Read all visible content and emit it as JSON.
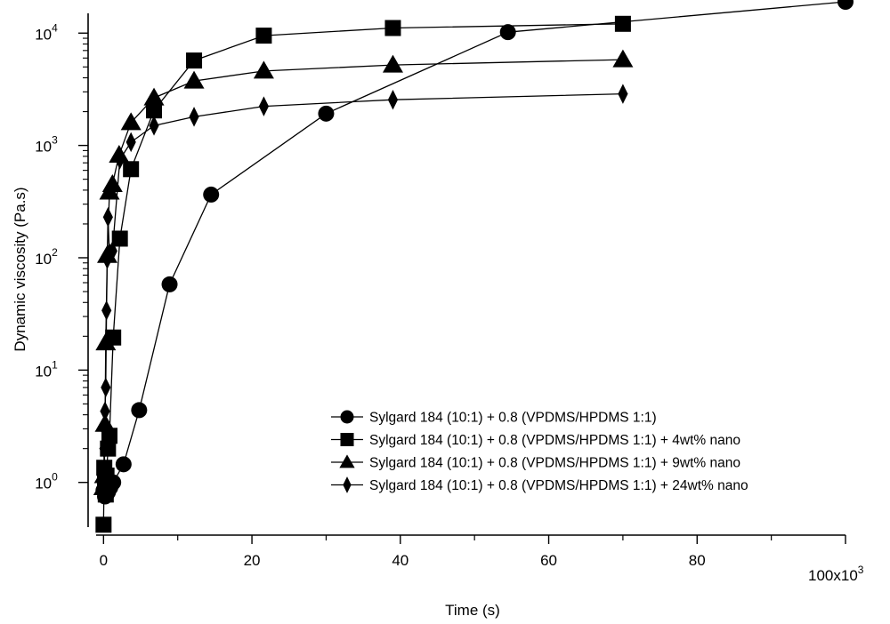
{
  "chart_data": {
    "type": "scatter",
    "xlabel": "Time (s)",
    "ylabel": "Dynamic viscosity (Pa.s)",
    "x_multiplier_base": "100x10",
    "x_multiplier_exp": "3",
    "xlim": [
      -1000,
      100000
    ],
    "ylim": [
      0.4,
      15000
    ],
    "yscale": "log",
    "x_ticks": [
      0,
      20000,
      40000,
      60000,
      80000,
      100000
    ],
    "x_tick_labels": [
      "0",
      "20",
      "40",
      "60",
      "80",
      ""
    ],
    "y_ticks": [
      1,
      10,
      100,
      1000,
      10000
    ],
    "y_tick_base": "10",
    "y_tick_exps": [
      "0",
      "1",
      "2",
      "3",
      "4"
    ],
    "legend_position": "bottom-right",
    "series": [
      {
        "name": "Sylgard 184 (10:1) + 0.8 (VPDMS/HPDMS 1:1)",
        "marker": "circle",
        "x": [
          0,
          200,
          400,
          600,
          900,
          1300,
          2700,
          4800,
          8900,
          14500,
          30000,
          54500,
          100000
        ],
        "y": [
          0.85,
          0.75,
          0.78,
          0.82,
          0.9,
          1.0,
          1.45,
          4.4,
          58,
          365,
          1920,
          10200,
          19000
        ]
      },
      {
        "name": "Sylgard 184 (10:1) + 0.8 (VPDMS/HPDMS 1:1) + 4wt% nano",
        "marker": "square",
        "x": [
          0,
          100,
          200,
          300,
          400,
          600,
          800,
          1300,
          2200,
          3700,
          6800,
          12200,
          21600,
          39000,
          70000
        ],
        "y": [
          0.42,
          1.35,
          1.0,
          0.78,
          1.15,
          2.0,
          2.6,
          19.5,
          148,
          615,
          2050,
          5700,
          9500,
          11100,
          12100
        ]
      },
      {
        "name": "Sylgard 184 (10:1) + 0.8 (VPDMS/HPDMS 1:1) + 9wt% nano",
        "marker": "triangle",
        "x": [
          0,
          100,
          200,
          300,
          500,
          800,
          1200,
          2100,
          3700,
          6800,
          12200,
          21600,
          39000,
          70000
        ],
        "y": [
          0.9,
          1.15,
          3.3,
          17.5,
          105,
          385,
          450,
          820,
          1600,
          2650,
          3750,
          4600,
          5200,
          5800
        ]
      },
      {
        "name": "Sylgard 184 (10:1) + 0.8 (VPDMS/HPDMS 1:1) + 24wt% nano",
        "marker": "diamond",
        "x": [
          0,
          100,
          150,
          200,
          300,
          400,
          500,
          600,
          800,
          1200,
          2200,
          3700,
          6800,
          12200,
          21600,
          39000,
          70000
        ],
        "y": [
          1.1,
          2.0,
          3.0,
          4.3,
          7.0,
          34,
          97,
          230,
          110,
          115,
          750,
          1070,
          1500,
          1800,
          2230,
          2550,
          2880
        ]
      }
    ]
  }
}
